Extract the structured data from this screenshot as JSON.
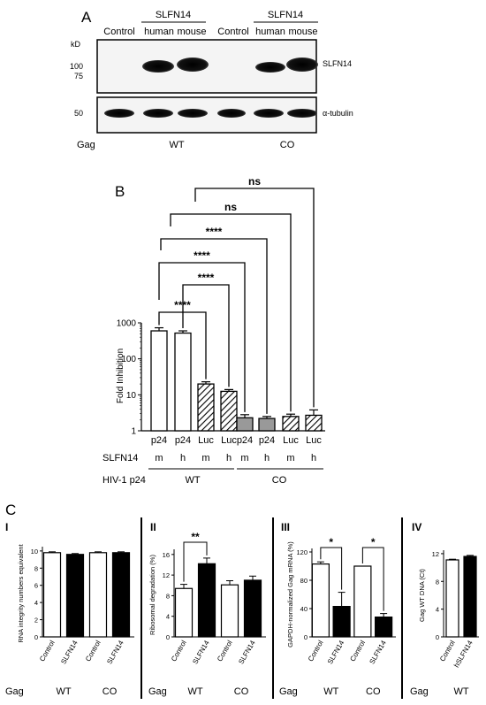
{
  "panelA": {
    "letter": "A",
    "header_top_left": "SLFN14",
    "header_top_right": "SLFN14",
    "lanes": [
      "Control",
      "human",
      "mouse",
      "Control",
      "human",
      "mouse"
    ],
    "kd_label": "kD",
    "markers": [
      "100",
      "75",
      "50"
    ],
    "band_labels": [
      "SLFN14",
      "α-tubulin"
    ],
    "gag_label": "Gag",
    "gag_groups": [
      "WT",
      "CO"
    ]
  },
  "panelB": {
    "letter": "B",
    "ylabel": "Fold Inhibition",
    "yticks": [
      "1",
      "10",
      "100",
      "1000"
    ],
    "row1_label": "SLFN14",
    "row1_values": [
      "m",
      "h",
      "m",
      "h",
      "m",
      "h",
      "m",
      "h"
    ],
    "row2_label": "HIV-1 p24",
    "row2_groups": [
      "WT",
      "CO"
    ],
    "sig": [
      "****",
      "****",
      "****",
      "****",
      "ns",
      "ns"
    ]
  },
  "panelC": {
    "letter": "C",
    "gag_label": "Gag",
    "sig_II": "**",
    "sig_III_1": "*",
    "sig_III_2": "*",
    "group_labels": [
      "WT",
      "CO"
    ],
    "group_label_IV": "WT"
  },
  "chart_data": [
    {
      "id": "B",
      "type": "bar",
      "categories": [
        "p24",
        "p24",
        "Luc",
        "Luc",
        "p24",
        "p24",
        "Luc",
        "Luc"
      ],
      "values": [
        600,
        520,
        20,
        12.5,
        2.3,
        2.2,
        2.5,
        2.7
      ],
      "errors": [
        130,
        80,
        3,
        1.5,
        0.5,
        0.3,
        0.4,
        1.1
      ],
      "ylabel": "Fold Inhibition",
      "yscale": "log",
      "ylim": [
        1,
        1000
      ],
      "grid": false
    },
    {
      "id": "C-I",
      "panel_label": "I",
      "type": "bar",
      "categories": [
        "Control",
        "SLFN14",
        "Control",
        "SLFN14"
      ],
      "values": [
        9.8,
        9.6,
        9.8,
        9.8
      ],
      "errors": [
        0.1,
        0.1,
        0.1,
        0.1
      ],
      "ylabel": "RNA integrity numbers equivalent",
      "yticks": [
        "0",
        "2",
        "4",
        "6",
        "8",
        "10"
      ],
      "ylim": [
        0,
        10.5
      ]
    },
    {
      "id": "C-II",
      "panel_label": "II",
      "type": "bar",
      "categories": [
        "Control",
        "SLFN14",
        "Control",
        "SLFN14"
      ],
      "values": [
        9.4,
        14.2,
        10.1,
        11.0
      ],
      "errors": [
        0.8,
        1.1,
        0.8,
        0.8
      ],
      "ylabel": "Ribosomal degradation (%)",
      "yticks": [
        "0",
        "4",
        "8",
        "12",
        "16"
      ],
      "ylim": [
        0,
        17
      ]
    },
    {
      "id": "C-III",
      "panel_label": "III",
      "type": "bar",
      "categories": [
        "Control",
        "SLFN14",
        "Control",
        "SLFN14"
      ],
      "values": [
        103,
        43,
        100,
        28
      ],
      "errors": [
        3,
        20,
        0,
        5
      ],
      "ylabel": "GAPDH-normalized Gag mRNA (%)",
      "yticks": [
        "0",
        "40",
        "80",
        "120"
      ],
      "ylim": [
        0,
        125
      ]
    },
    {
      "id": "C-IV",
      "panel_label": "IV",
      "type": "bar",
      "categories": [
        "Control",
        "hSLFN14"
      ],
      "values": [
        11.1,
        11.6
      ],
      "errors": [
        0.1,
        0.15
      ],
      "ylabel": "Gag WT DNA (Ct)",
      "yticks": [
        "0",
        "4",
        "8",
        "12"
      ],
      "ylim": [
        0,
        12.5
      ]
    }
  ]
}
